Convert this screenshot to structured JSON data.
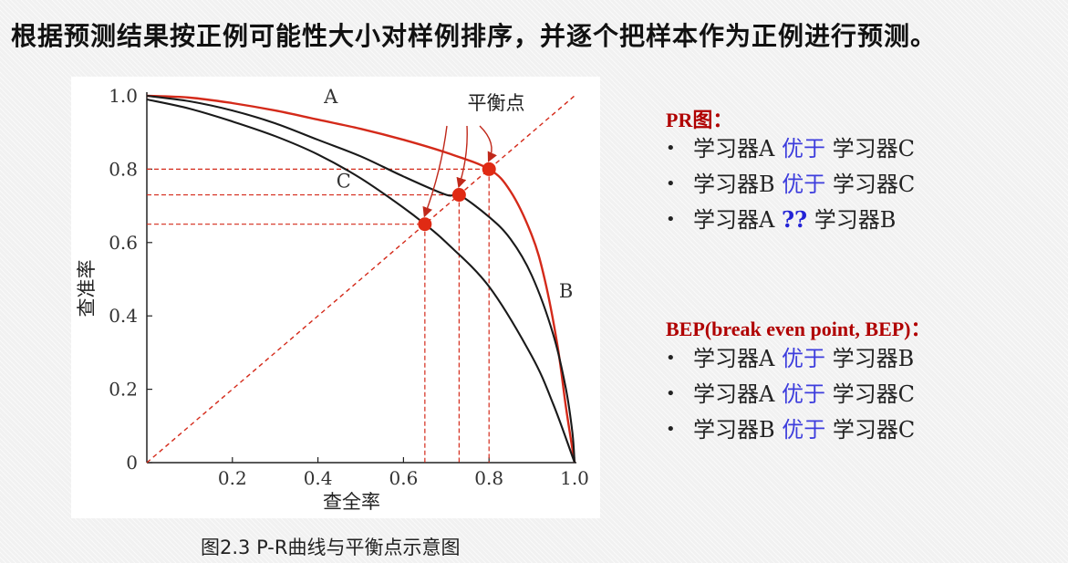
{
  "headline": "根据预测结果按正例可能性大小对样例排序，并逐个把样本作为正例进行预测。",
  "caption": "图2.3 P-R曲线与平衡点示意图",
  "chart_data": {
    "type": "line",
    "xlabel": "查全率",
    "ylabel": "查准率",
    "xlim": [
      0,
      1
    ],
    "ylim": [
      0,
      1
    ],
    "x_ticks": [
      "0.2",
      "0.4",
      "0.6",
      "0.8",
      "1.0"
    ],
    "y_ticks": [
      "0",
      "0.2",
      "0.4",
      "0.6",
      "0.8",
      "1.0"
    ],
    "grid": false,
    "series": [
      {
        "name": "A",
        "color": "#d42a1a",
        "x": [
          0,
          0.1,
          0.2,
          0.3,
          0.4,
          0.5,
          0.6,
          0.7,
          0.8,
          0.85,
          0.9,
          0.93,
          0.96,
          0.98,
          1.0
        ],
        "y": [
          1.0,
          0.995,
          0.98,
          0.96,
          0.935,
          0.91,
          0.88,
          0.845,
          0.8,
          0.74,
          0.62,
          0.5,
          0.32,
          0.15,
          0
        ]
      },
      {
        "name": "B",
        "color": "#1a1a1a",
        "x": [
          0,
          0.1,
          0.2,
          0.3,
          0.4,
          0.5,
          0.6,
          0.7,
          0.73,
          0.8,
          0.85,
          0.9,
          0.95,
          0.98,
          0.995,
          1.0
        ],
        "y": [
          1.0,
          0.985,
          0.96,
          0.925,
          0.88,
          0.835,
          0.78,
          0.73,
          0.73,
          0.67,
          0.61,
          0.51,
          0.35,
          0.2,
          0.08,
          0
        ]
      },
      {
        "name": "C",
        "color": "#1a1a1a",
        "x": [
          0,
          0.1,
          0.2,
          0.3,
          0.4,
          0.5,
          0.6,
          0.65,
          0.7,
          0.8,
          0.9,
          0.95,
          1.0
        ],
        "y": [
          0.99,
          0.965,
          0.93,
          0.89,
          0.84,
          0.775,
          0.695,
          0.65,
          0.6,
          0.48,
          0.29,
          0.16,
          0
        ]
      }
    ],
    "diagonal": {
      "x": [
        0,
        1
      ],
      "y": [
        0,
        1
      ],
      "color": "#d42a1a",
      "style": "dashed"
    },
    "break_even_points": [
      {
        "series": "C",
        "x": 0.65,
        "y": 0.65
      },
      {
        "series": "B",
        "x": 0.73,
        "y": 0.73
      },
      {
        "series": "A",
        "x": 0.8,
        "y": 0.8
      }
    ],
    "annotation": "平衡点",
    "curve_labels": [
      {
        "text": "A",
        "x": 0.43,
        "y": 0.99
      },
      {
        "text": "B",
        "x": 0.98,
        "y": 0.46
      },
      {
        "text": "C",
        "x": 0.46,
        "y": 0.76
      }
    ]
  },
  "notes": {
    "pr": {
      "title": "PR图：",
      "items": [
        {
          "left": "学习器A",
          "rel": "优于",
          "right": "学习器C",
          "rel_style": "better"
        },
        {
          "left": "学习器B",
          "rel": "优于",
          "right": "学习器C",
          "rel_style": "better"
        },
        {
          "left": "学习器A",
          "rel": "??",
          "right": "学习器B",
          "rel_style": "unknown"
        }
      ]
    },
    "bep": {
      "title": "BEP(break even point, BEP)：",
      "items": [
        {
          "left": "学习器A",
          "rel": "优于",
          "right": "学习器B",
          "rel_style": "better"
        },
        {
          "left": "学习器A",
          "rel": "优于",
          "right": "学习器C",
          "rel_style": "better"
        },
        {
          "left": "学习器B",
          "rel": "优于",
          "right": "学习器C",
          "rel_style": "better"
        }
      ]
    },
    "bullet": "•",
    "colors": {
      "title": "#b00000",
      "relation": "#3d3ddd"
    }
  }
}
